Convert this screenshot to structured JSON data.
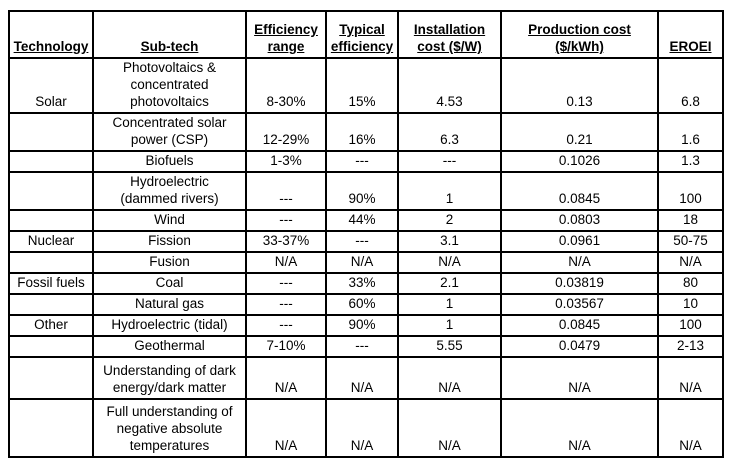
{
  "header": {
    "technology": "Technology",
    "subtech": "Sub-tech",
    "efficiency_range": "Efficiency\nrange",
    "typical_efficiency": "Typical\nefficiency",
    "installation_cost": "Installation\ncost ($/W)",
    "production_cost": "Production cost\n($/kWh)",
    "eroei": "EROEI"
  },
  "rows": [
    {
      "technology": "Solar",
      "subtech": "Photovoltaics &\nconcentrated\nphotovoltaics",
      "efficiency_range": "8-30%",
      "typical_efficiency": "15%",
      "installation_cost": "4.53",
      "production_cost": "0.13",
      "eroei": "6.8"
    },
    {
      "technology": "",
      "subtech": "Concentrated solar\npower (CSP)",
      "efficiency_range": "12-29%",
      "typical_efficiency": "16%",
      "installation_cost": "6.3",
      "production_cost": "0.21",
      "eroei": "1.6"
    },
    {
      "technology": "",
      "subtech": "Biofuels",
      "efficiency_range": "1-3%",
      "typical_efficiency": "---",
      "installation_cost": "---",
      "production_cost": "0.1026",
      "eroei": "1.3"
    },
    {
      "technology": "",
      "subtech": "Hydroelectric\n(dammed rivers)",
      "efficiency_range": "---",
      "typical_efficiency": "90%",
      "installation_cost": "1",
      "production_cost": "0.0845",
      "eroei": "100"
    },
    {
      "technology": "",
      "subtech": "Wind",
      "efficiency_range": "---",
      "typical_efficiency": "44%",
      "installation_cost": "2",
      "production_cost": "0.0803",
      "eroei": "18"
    },
    {
      "technology": "Nuclear",
      "subtech": "Fission",
      "efficiency_range": "33-37%",
      "typical_efficiency": "---",
      "installation_cost": "3.1",
      "production_cost": "0.0961",
      "eroei": "50-75"
    },
    {
      "technology": "",
      "subtech": "Fusion",
      "efficiency_range": "N/A",
      "typical_efficiency": "N/A",
      "installation_cost": "N/A",
      "production_cost": "N/A",
      "eroei": "N/A"
    },
    {
      "technology": "Fossil fuels",
      "subtech": "Coal",
      "efficiency_range": "---",
      "typical_efficiency": "33%",
      "installation_cost": "2.1",
      "production_cost": "0.03819",
      "eroei": "80"
    },
    {
      "technology": "",
      "subtech": "Natural gas",
      "efficiency_range": "---",
      "typical_efficiency": "60%",
      "installation_cost": "1",
      "production_cost": "0.03567",
      "eroei": "10"
    },
    {
      "technology": "Other",
      "subtech": "Hydroelectric (tidal)",
      "efficiency_range": "---",
      "typical_efficiency": "90%",
      "installation_cost": "1",
      "production_cost": "0.0845",
      "eroei": "100"
    },
    {
      "technology": "",
      "subtech": "Geothermal",
      "efficiency_range": "7-10%",
      "typical_efficiency": "---",
      "installation_cost": "5.55",
      "production_cost": "0.0479",
      "eroei": "2-13"
    },
    {
      "technology": "",
      "subtech": "Understanding of dark\nenergy/dark matter",
      "efficiency_range": "N/A",
      "typical_efficiency": "N/A",
      "installation_cost": "N/A",
      "production_cost": "N/A",
      "eroei": "N/A"
    },
    {
      "technology": "",
      "subtech": "Full understanding of\nnegative absolute\ntemperatures",
      "efficiency_range": "N/A",
      "typical_efficiency": "N/A",
      "installation_cost": "N/A",
      "production_cost": "N/A",
      "eroei": "N/A"
    }
  ]
}
